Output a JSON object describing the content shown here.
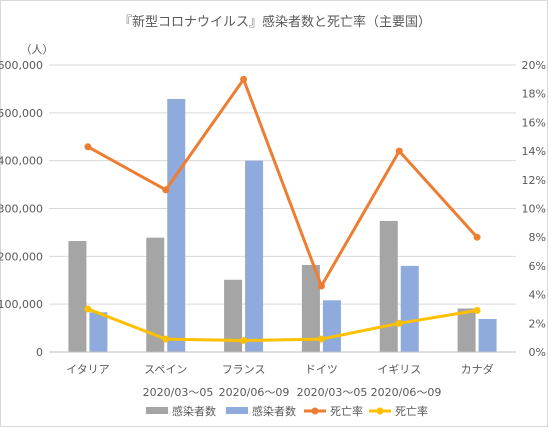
{
  "chart_data": {
    "type": "bar",
    "title": "『新型コロナウイルス』感染者数と死亡率（主要国）",
    "ylabel": "（人）",
    "categories": [
      "イタリア",
      "スペイン",
      "フランス",
      "ドイツ",
      "イギリス",
      "カナダ"
    ],
    "period_labels": [
      "2020/03～05",
      "2020/06～09",
      "2020/03～05",
      "2020/06～09"
    ],
    "y_left": {
      "min": 0,
      "max": 600000,
      "ticks": [
        "0",
        "100,000",
        "200,000",
        "300,000",
        "400,000",
        "500,000",
        "600,000"
      ]
    },
    "y_right": {
      "min": 0,
      "max": 0.2,
      "ticks": [
        "0%",
        "2%",
        "4%",
        "6%",
        "8%",
        "10%",
        "12%",
        "14%",
        "16%",
        "18%",
        "20%"
      ]
    },
    "grid": true,
    "legend_position": "bottom",
    "series": [
      {
        "name": "感染者数",
        "kind": "bar",
        "axis": "left",
        "color": "#a5a5a5",
        "values": [
          232000,
          239000,
          151000,
          182000,
          274000,
          91000
        ]
      },
      {
        "name": "感染者数",
        "kind": "bar",
        "axis": "left",
        "color": "#8faadc",
        "values": [
          83000,
          529000,
          400000,
          108000,
          180000,
          69000
        ]
      },
      {
        "name": "死亡率",
        "kind": "line",
        "axis": "right",
        "color": "#ed7d31",
        "values": [
          0.143,
          0.113,
          0.19,
          0.046,
          0.14,
          0.08
        ]
      },
      {
        "name": "死亡率",
        "kind": "line",
        "axis": "right",
        "color": "#ffc000",
        "values": [
          0.03,
          0.009,
          0.008,
          0.009,
          0.02,
          0.029
        ]
      }
    ]
  }
}
